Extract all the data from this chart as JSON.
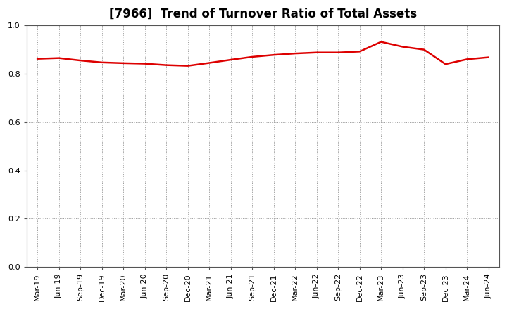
{
  "title": "[7966]  Trend of Turnover Ratio of Total Assets",
  "labels": [
    "Mar-19",
    "Jun-19",
    "Sep-19",
    "Dec-19",
    "Mar-20",
    "Jun-20",
    "Sep-20",
    "Dec-20",
    "Mar-21",
    "Jun-21",
    "Sep-21",
    "Dec-21",
    "Mar-22",
    "Jun-22",
    "Sep-22",
    "Dec-22",
    "Mar-23",
    "Jun-23",
    "Sep-23",
    "Dec-23",
    "Mar-24",
    "Jun-24"
  ],
  "values": [
    0.862,
    0.865,
    0.855,
    0.847,
    0.844,
    0.842,
    0.836,
    0.833,
    0.845,
    0.858,
    0.87,
    0.878,
    0.884,
    0.888,
    0.888,
    0.892,
    0.932,
    0.912,
    0.9,
    0.84,
    0.86,
    0.868
  ],
  "line_color": "#dd0000",
  "line_width": 1.8,
  "ylim": [
    0.0,
    1.0
  ],
  "yticks": [
    0.0,
    0.2,
    0.4,
    0.6,
    0.8,
    1.0
  ],
  "grid_color": "#999999",
  "bg_color": "#ffffff",
  "title_fontsize": 12,
  "tick_fontsize": 8
}
